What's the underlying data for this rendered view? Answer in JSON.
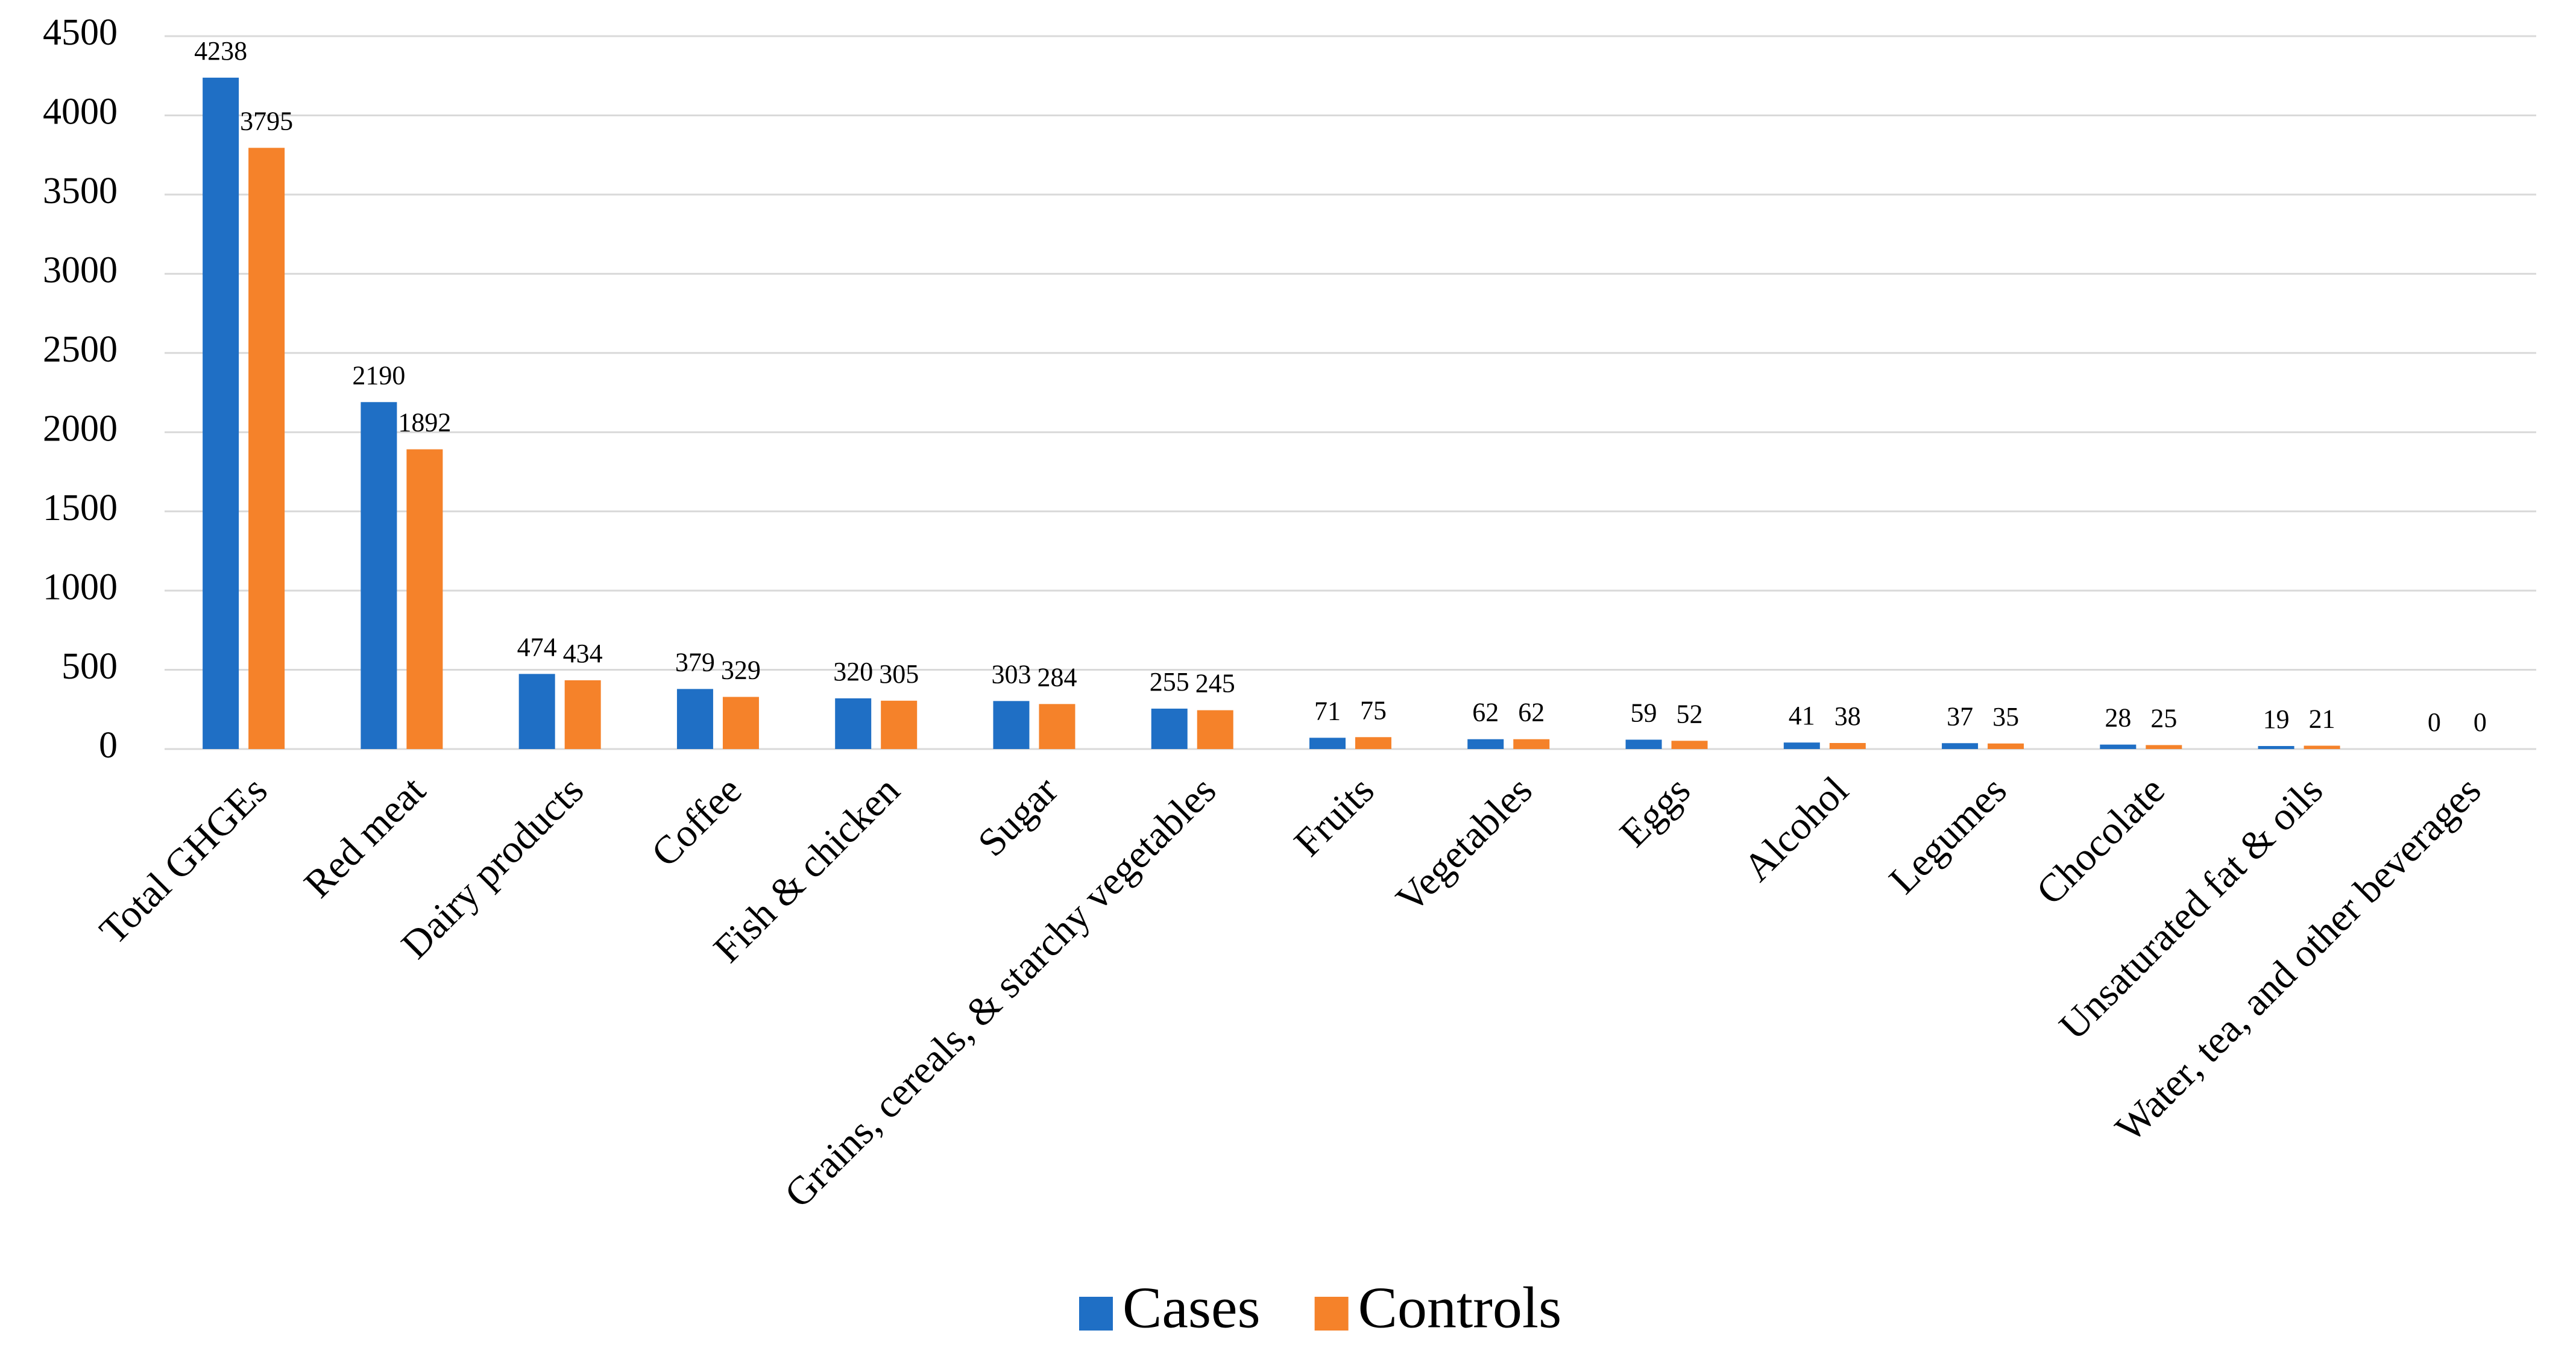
{
  "chart_data": {
    "type": "bar",
    "categories": [
      "Total GHGEs",
      "Red meat",
      "Dairy products",
      "Coffee",
      "Fish & chicken",
      "Sugar",
      "Grains, cereals, & starchy vegetables",
      "Fruits",
      "Vegetables",
      "Eggs",
      "Alcohol",
      "Legumes",
      "Chocolate",
      "Unsaturated fat & oils",
      "Water, tea, and other beverages"
    ],
    "series": [
      {
        "name": "Cases",
        "color": "#1f6fc5",
        "values": [
          4238,
          2190,
          474,
          379,
          320,
          303,
          255,
          71,
          62,
          59,
          41,
          37,
          28,
          19,
          0
        ]
      },
      {
        "name": "Controls",
        "color": "#f5822a",
        "values": [
          3795,
          1892,
          434,
          329,
          305,
          284,
          245,
          75,
          62,
          52,
          38,
          35,
          25,
          21,
          0
        ]
      }
    ],
    "ylim": [
      0,
      4500
    ],
    "yticks": [
      0,
      500,
      1000,
      1500,
      2000,
      2500,
      3000,
      3500,
      4000,
      4500
    ],
    "grid": true,
    "legend": "bottom"
  }
}
